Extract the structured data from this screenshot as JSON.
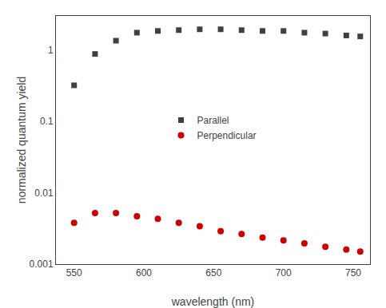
{
  "chart_data": {
    "type": "scatter",
    "xlabel": "wavelength (nm)",
    "ylabel": "normalized quantum yield",
    "x": [
      550,
      565,
      580,
      595,
      610,
      625,
      640,
      655,
      670,
      685,
      700,
      715,
      730,
      745,
      755
    ],
    "series": [
      {
        "name": "Parallel",
        "color": "#404040",
        "marker": "square",
        "values": [
          0.32,
          0.88,
          1.35,
          1.75,
          1.85,
          1.9,
          1.95,
          1.95,
          1.9,
          1.85,
          1.85,
          1.75,
          1.7,
          1.6,
          1.55
        ]
      },
      {
        "name": "Perpendicular",
        "color": "#cc0000",
        "marker": "circle",
        "values": [
          0.0038,
          0.0052,
          0.0052,
          0.0047,
          0.0043,
          0.0038,
          0.0034,
          0.0029,
          0.00265,
          0.00235,
          0.00215,
          0.00195,
          0.00175,
          0.0016,
          0.0015
        ]
      }
    ],
    "log": "y",
    "xlim": [
      537,
      762
    ],
    "ylim": [
      0.001,
      3.0
    ],
    "xticks": [
      550,
      600,
      650,
      700,
      750
    ],
    "yticks": [
      0.001,
      0.01,
      0.1,
      1
    ],
    "grid": false,
    "legend": "center"
  }
}
